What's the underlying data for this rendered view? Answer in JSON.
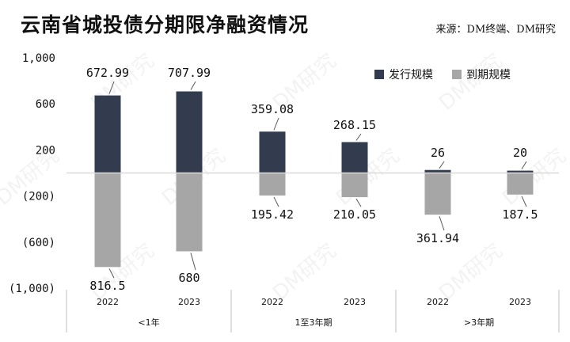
{
  "header": {
    "title": "云南省城投债分期限净融资情况",
    "source": "来源：DM终端、DM研究"
  },
  "watermark_text": "DM研究",
  "chart_data": {
    "type": "bar",
    "title": "云南省城投债分期限净融资情况",
    "groups": [
      "<1年",
      "1至3年期",
      ">3年期"
    ],
    "categories": [
      "2022",
      "2023",
      "2022",
      "2023",
      "2022",
      "2023"
    ],
    "category_groups": [
      0,
      0,
      1,
      1,
      2,
      2
    ],
    "series": [
      {
        "name": "发行规模",
        "values": [
          672.99,
          707.99,
          359.08,
          268.15,
          26,
          20
        ],
        "labels": [
          "672.99",
          "707.99",
          "359.08",
          "268.15",
          "26",
          "20"
        ],
        "color": "#333c4e"
      },
      {
        "name": "到期规模",
        "values": [
          -816.5,
          -680,
          -195.42,
          -210.05,
          -361.94,
          -187.5
        ],
        "labels": [
          "816.5",
          "680",
          "195.42",
          "210.05",
          "361.94",
          "187.5"
        ],
        "color": "#a6a6a6"
      }
    ],
    "ylim": [
      -1000,
      1000
    ],
    "yticks": [
      1000,
      600,
      200,
      -200,
      -600,
      -1000
    ],
    "ytick_labels": [
      "1,000",
      "600",
      "200",
      "(200)",
      "(600)",
      "(1,000)"
    ],
    "legend_position": "top-right",
    "grid": false
  }
}
